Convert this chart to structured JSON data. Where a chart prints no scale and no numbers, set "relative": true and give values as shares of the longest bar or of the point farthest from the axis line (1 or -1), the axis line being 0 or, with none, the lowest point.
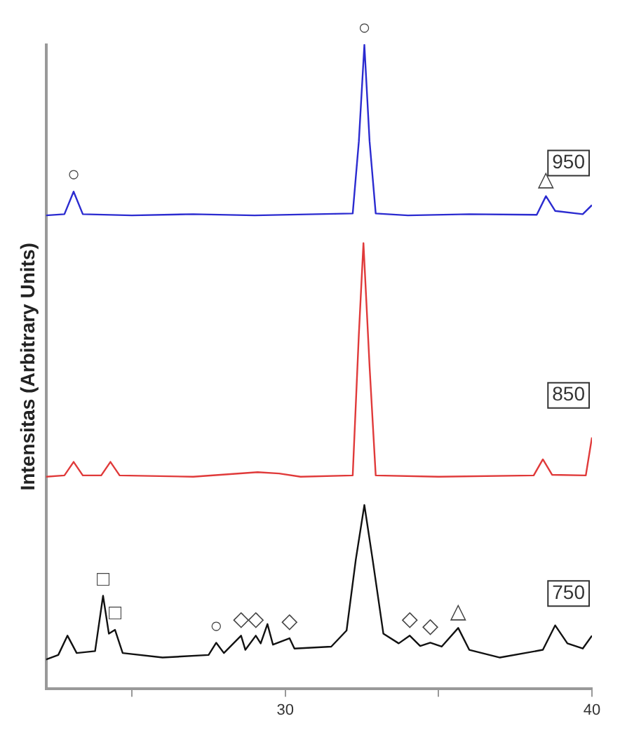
{
  "chart_data": {
    "type": "line",
    "relative": true,
    "ylabel": "Intensitas (Arbitrary Units)",
    "xlim": [
      22.2,
      40
    ],
    "xticks": [
      {
        "value": 25,
        "label": null
      },
      30,
      {
        "value": 35,
        "label": null
      },
      40
    ],
    "grid": false,
    "legend": false,
    "marker": "none",
    "line_style": "solid",
    "series": [
      {
        "name": "950",
        "color": "#2b2bd0",
        "x": [
          22.2,
          22.8,
          23.1,
          23.4,
          25,
          27,
          29,
          31,
          32.2,
          32.4,
          32.58,
          32.75,
          32.95,
          34,
          36,
          38.2,
          38.5,
          38.8,
          39.7,
          40
        ],
        "values": [
          0.735,
          0.737,
          0.772,
          0.737,
          0.735,
          0.737,
          0.735,
          0.737,
          0.738,
          0.85,
          1.0,
          0.85,
          0.738,
          0.735,
          0.737,
          0.736,
          0.765,
          0.742,
          0.737,
          0.751
        ]
      },
      {
        "name": "850",
        "color": "#e03a3a",
        "x": [
          22.2,
          22.8,
          23.1,
          23.4,
          24.0,
          24.3,
          24.6,
          27,
          29.1,
          29.8,
          30.5,
          32.2,
          32.4,
          32.55,
          32.75,
          32.95,
          35,
          38.1,
          38.4,
          38.7,
          39.8,
          40
        ],
        "values": [
          0.329,
          0.331,
          0.352,
          0.331,
          0.331,
          0.352,
          0.331,
          0.329,
          0.336,
          0.334,
          0.329,
          0.331,
          0.55,
          0.692,
          0.5,
          0.331,
          0.329,
          0.331,
          0.356,
          0.332,
          0.331,
          0.39
        ]
      },
      {
        "name": "750",
        "color": "#111111",
        "x": [
          22.2,
          22.6,
          22.9,
          23.2,
          23.8,
          24.06,
          24.25,
          24.45,
          24.7,
          26,
          27.5,
          27.75,
          28.0,
          28.56,
          28.7,
          29.04,
          29.2,
          29.42,
          29.6,
          30.14,
          30.3,
          31.5,
          32.0,
          32.3,
          32.58,
          32.85,
          33.2,
          33.7,
          34.06,
          34.4,
          34.73,
          35.1,
          35.64,
          36.0,
          37,
          38.4,
          38.8,
          39.2,
          39.7,
          40
        ],
        "values": [
          0.045,
          0.052,
          0.082,
          0.055,
          0.058,
          0.144,
          0.085,
          0.091,
          0.055,
          0.048,
          0.052,
          0.071,
          0.055,
          0.082,
          0.06,
          0.082,
          0.07,
          0.1,
          0.068,
          0.078,
          0.062,
          0.065,
          0.09,
          0.2,
          0.285,
          0.2,
          0.085,
          0.07,
          0.082,
          0.066,
          0.071,
          0.065,
          0.094,
          0.06,
          0.048,
          0.06,
          0.098,
          0.07,
          0.062,
          0.082
        ]
      }
    ],
    "annotations": [
      {
        "text": "○",
        "x": 23.1,
        "y": 0.772
      },
      {
        "text": "○",
        "x": 32.58,
        "y": 1.0
      },
      {
        "text": "△",
        "x": 38.5,
        "y": 0.765
      },
      {
        "text": "□",
        "x": 24.06,
        "y": 0.144
      },
      {
        "text": "□",
        "x": 24.45,
        "y": 0.091
      },
      {
        "text": "○",
        "x": 27.75,
        "y": 0.071
      },
      {
        "text": "◇",
        "x": 28.56,
        "y": 0.082
      },
      {
        "text": "◇",
        "x": 29.04,
        "y": 0.082
      },
      {
        "text": "◇",
        "x": 30.14,
        "y": 0.078
      },
      {
        "text": "◇",
        "x": 34.06,
        "y": 0.082
      },
      {
        "text": "◇",
        "x": 34.73,
        "y": 0.071
      },
      {
        "text": "△",
        "x": 35.64,
        "y": 0.094
      }
    ]
  }
}
